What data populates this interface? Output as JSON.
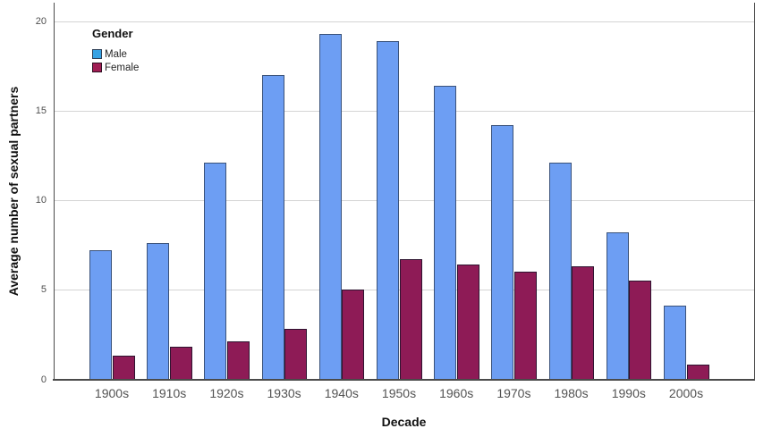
{
  "legend": {
    "title": "Gender",
    "items": [
      {
        "label": "Male",
        "swatch_color": "#36a2e4",
        "swatch_border": "#2e3f55"
      },
      {
        "label": "Female",
        "swatch_color": "#a01d53",
        "swatch_border": "#2e1022"
      }
    ]
  },
  "chart_data": {
    "type": "bar",
    "title": "",
    "xlabel": "Decade",
    "ylabel": "Average number of sexual partners",
    "categories": [
      "1900s",
      "1910s",
      "1920s",
      "1930s",
      "1940s",
      "1950s",
      "1960s",
      "1970s",
      "1980s",
      "1990s",
      "2000s"
    ],
    "series": [
      {
        "name": "Male",
        "color": "#6d9ef3",
        "border_color": "#3a527a",
        "values": [
          7.2,
          7.6,
          12.1,
          17.0,
          19.3,
          18.9,
          16.4,
          14.2,
          12.1,
          8.2,
          4.1
        ]
      },
      {
        "name": "Female",
        "color": "#8e1b56",
        "border_color": "#2e1430",
        "values": [
          1.3,
          1.8,
          2.1,
          2.8,
          5.0,
          6.7,
          6.4,
          6.0,
          6.3,
          5.5,
          0.8
        ]
      }
    ],
    "ylim": [
      0,
      21
    ],
    "yticks": [
      0,
      5,
      10,
      15,
      20
    ],
    "grid": true,
    "legend_position": "top-left-inside"
  }
}
